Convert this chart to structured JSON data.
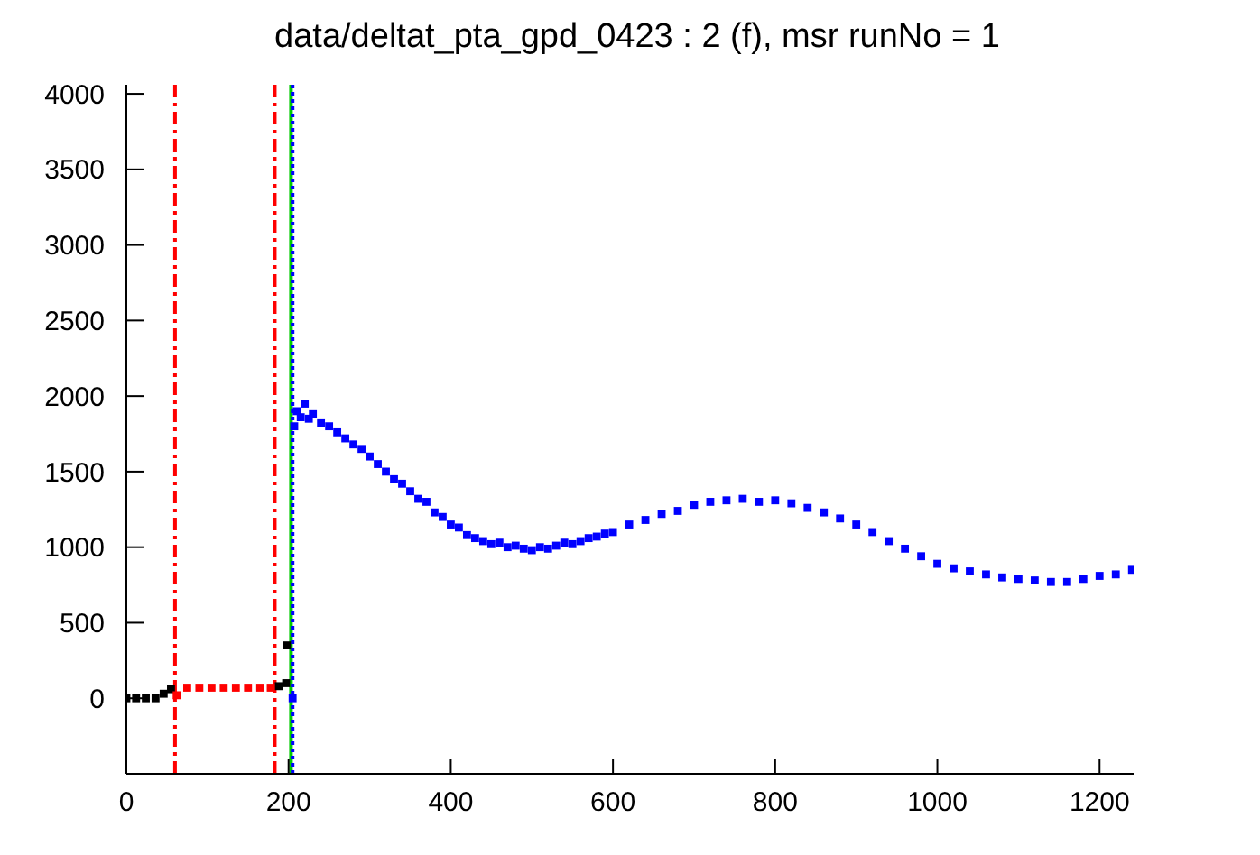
{
  "chart_data": {
    "type": "scatter",
    "title": "data/deltat_pta_gpd_0423 : 2 (f), msr runNo = 1",
    "xlim": [
      0,
      1242
    ],
    "xticks": [
      0,
      200,
      400,
      600,
      800,
      1000,
      1200
    ],
    "ylim": [
      -500,
      4060
    ],
    "yticks": [
      0,
      500,
      1000,
      1500,
      2000,
      2500,
      3000,
      3500,
      4000
    ],
    "grid": false,
    "legend": false,
    "marker": "square",
    "series": [
      {
        "color": "#000000",
        "x": [
          0,
          12,
          24,
          36,
          46,
          55,
          188,
          197,
          198
        ],
        "values": [
          0,
          0,
          0,
          0,
          30,
          60,
          80,
          100,
          350
        ]
      },
      {
        "color": "#ff0000",
        "x": [
          62,
          75,
          90,
          105,
          120,
          135,
          150,
          165,
          178
        ],
        "values": [
          20,
          70,
          70,
          70,
          70,
          70,
          70,
          70,
          70
        ]
      },
      {
        "color": "#0000ff",
        "x": [
          205,
          207,
          210,
          215,
          220,
          225,
          230,
          240,
          250,
          260,
          270,
          280,
          290,
          300,
          310,
          320,
          330,
          340,
          350,
          360,
          370,
          380,
          390,
          400,
          410,
          420,
          430,
          440,
          450,
          460,
          470,
          480,
          490,
          500,
          510,
          520,
          530,
          540,
          550,
          560,
          570,
          580,
          590,
          600,
          620,
          640,
          660,
          680,
          700,
          720,
          740,
          760,
          780,
          800,
          820,
          840,
          860,
          880,
          900,
          920,
          940,
          960,
          980,
          1000,
          1020,
          1040,
          1060,
          1080,
          1100,
          1120,
          1140,
          1160,
          1180,
          1200,
          1220,
          1240
        ],
        "values": [
          0,
          1800,
          1900,
          1860,
          1950,
          1850,
          1880,
          1820,
          1800,
          1760,
          1720,
          1680,
          1650,
          1600,
          1550,
          1500,
          1450,
          1420,
          1370,
          1320,
          1300,
          1230,
          1200,
          1150,
          1130,
          1080,
          1060,
          1040,
          1020,
          1030,
          1000,
          1010,
          990,
          980,
          1000,
          990,
          1010,
          1030,
          1020,
          1040,
          1060,
          1070,
          1090,
          1100,
          1150,
          1180,
          1220,
          1240,
          1280,
          1300,
          1310,
          1320,
          1300,
          1310,
          1290,
          1260,
          1230,
          1190,
          1150,
          1100,
          1040,
          990,
          940,
          890,
          860,
          840,
          820,
          800,
          790,
          780,
          770,
          770,
          790,
          810,
          820,
          850
        ]
      }
    ],
    "ref_lines": [
      {
        "axis": "x",
        "value": 60,
        "color": "#ff0000",
        "line_style": "dashed"
      },
      {
        "axis": "x",
        "value": 183,
        "color": "#ff0000",
        "line_style": "dashed"
      },
      {
        "axis": "x",
        "value": 203,
        "color": "#00cc00",
        "line_style": "solid"
      },
      {
        "axis": "x",
        "value": 205,
        "color": "#0000ff",
        "line_style": "dotted"
      }
    ]
  }
}
